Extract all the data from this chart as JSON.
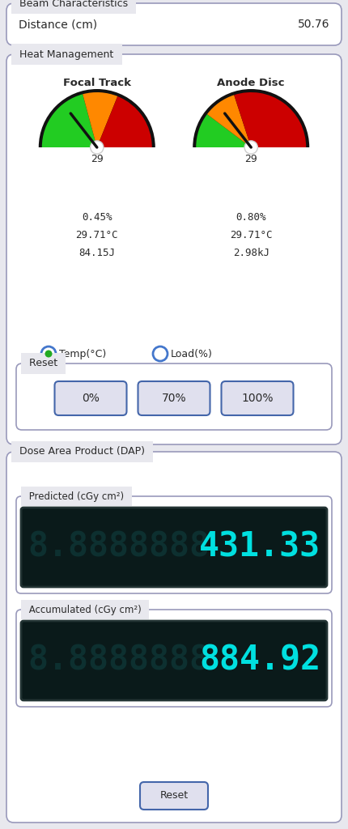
{
  "bg_color": "#e8e8ee",
  "box_bg": "#ffffff",
  "beam_title": "Beam Characteristics",
  "beam_label": "Distance (cm)",
  "beam_value": "50.76",
  "heat_title": "Heat Management",
  "gauge1_title": "Focal Track",
  "gauge2_title": "Anode Disc",
  "gauge1_value": "29",
  "gauge2_value": "29",
  "gauge1_pct": "0.45%",
  "gauge2_pct": "0.80%",
  "gauge1_temp": "29.71°C",
  "gauge2_temp": "29.71°C",
  "gauge1_energy": "84.15J",
  "gauge2_energy": "2.98kJ",
  "radio1": "Temp(°C)",
  "radio2": "Load(%)",
  "reset_title": "Reset",
  "btn_labels": [
    "0%",
    "70%",
    "100%"
  ],
  "dap_title": "Dose Area Product (DAP)",
  "predicted_title": "Predicted (cGy cm²)",
  "predicted_value": "431.33",
  "accumulated_title": "Accumulated (cGy cm²)",
  "accumulated_value": "884.92",
  "reset_btn": "Reset",
  "lcd_bg": "#0a1a1a",
  "lcd_active": "#00e0e0",
  "lcd_inactive": "#0d3030",
  "text_color": "#2a2a2a",
  "mono_font": "monospace",
  "sans_font": "DejaVu Sans",
  "edge_color": "#9999bb",
  "btn_edge": "#4466aa",
  "btn_bg": "#e0e0ee"
}
